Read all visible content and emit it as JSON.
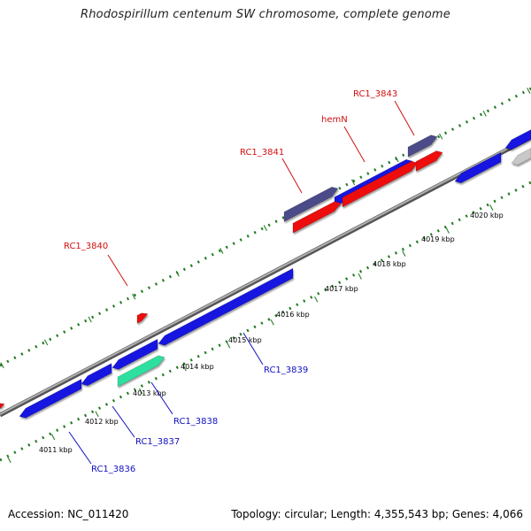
{
  "title": "Rhodospirillum centenum SW chromosome, complete genome",
  "footer": {
    "accession": "Accession: NC_011420",
    "summary": "Topology: circular; Length: 4,355,543 bp; Genes: 4,066"
  },
  "colors": {
    "backbone": "#8c8c8c",
    "forward_ticks": "#1f7a1f",
    "reverse_ticks": "#1f7a1f",
    "gene_blue": "#1414e0",
    "gene_red": "#ee0a0a",
    "gene_navy": "#4b4b8a",
    "gene_teal": "#2ee0a0",
    "gene_grey": "#c8c8c8",
    "label_red": "#d01010",
    "label_blue": "#1010c0"
  },
  "scale_labels": [
    "4011 kbp",
    "4012 kbp",
    "4013 kbp",
    "4014 kbp",
    "4015 kbp",
    "4016 kbp",
    "4017 kbp",
    "4018 kbp",
    "4019 kbp",
    "4020 kbp"
  ],
  "forward_labels": [
    "RC1_3840",
    "RC1_3841",
    "hemN",
    "RC1_3843"
  ],
  "reverse_labels": [
    "RC1_3836",
    "RC1_3837",
    "RC1_3838",
    "RC1_3839"
  ]
}
